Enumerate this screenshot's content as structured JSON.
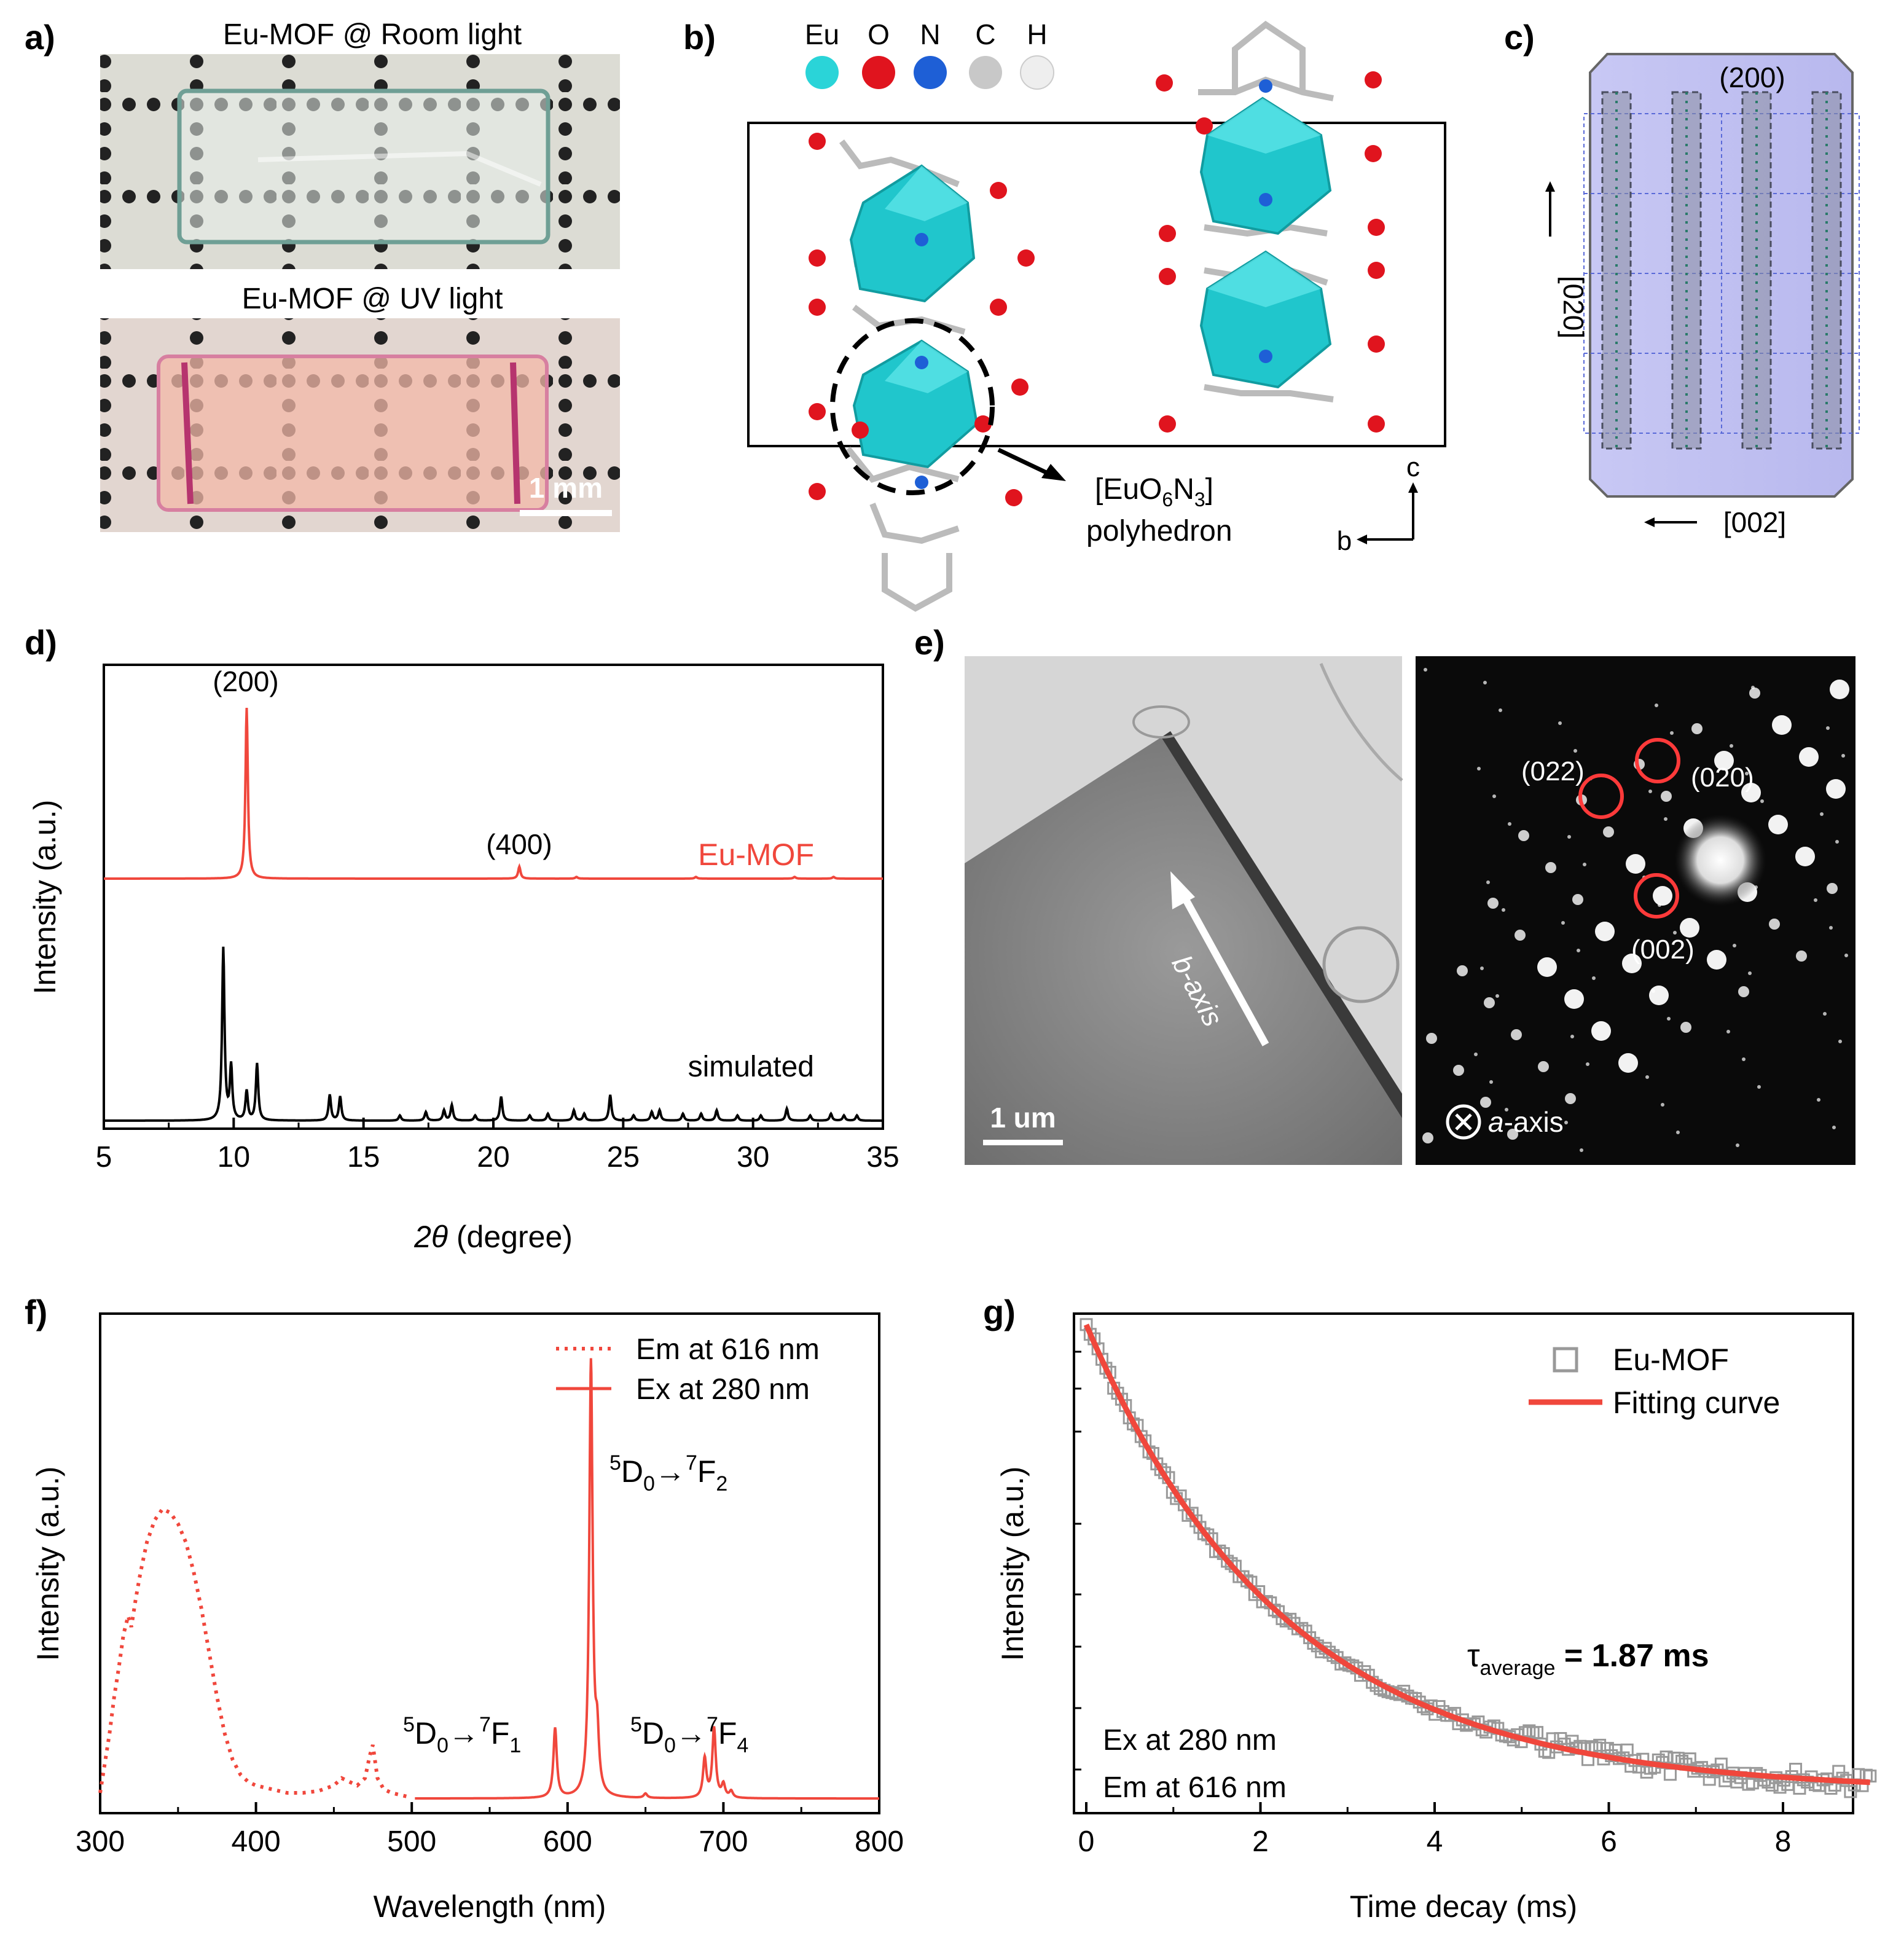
{
  "figure": {
    "panels": [
      "a)",
      "b)",
      "c)",
      "d)",
      "e)",
      "f)",
      "g)"
    ]
  },
  "panel_a": {
    "title_room": "Eu-MOF @ Room light",
    "title_uv": "Eu-MOF @ UV light",
    "scale_bar": "1 mm"
  },
  "panel_b": {
    "legend": [
      {
        "element": "Eu",
        "color": "#2ad4d8"
      },
      {
        "element": "O",
        "color": "#e0141e"
      },
      {
        "element": "N",
        "color": "#1e5fd6"
      },
      {
        "element": "C",
        "color": "#c8c8c8"
      },
      {
        "element": "H",
        "color": "#eeeeee"
      }
    ],
    "polyhedron_label_1": "[EuO",
    "polyhedron_sub_1": "6",
    "polyhedron_label_2": "N",
    "polyhedron_sub_2": "3",
    "polyhedron_label_3": "]",
    "polyhedron_word": "polyhedron",
    "axis_c": "c",
    "axis_b": "b"
  },
  "panel_c": {
    "face_label": "(200)",
    "dir_vertical": "[020]",
    "dir_horizontal": "[002]"
  },
  "panel_e": {
    "arrow_label": "b-axis",
    "scale_bar": "1 um",
    "spots": [
      "(022)",
      "(020)",
      "(002)"
    ],
    "zone_axis_prefix": "a",
    "zone_axis_suffix": "-axis"
  },
  "chart_data": [
    {
      "id": "d",
      "type": "line",
      "title": "",
      "xlabel_italic": "2θ",
      "xlabel_rest": " (degree)",
      "ylabel": "Intensity (a.u.)",
      "xlim": [
        5,
        35
      ],
      "xticks": [
        "5",
        "10",
        "15",
        "20",
        "25",
        "30",
        "35"
      ],
      "series": [
        {
          "name": "Eu-MOF",
          "color": "#f0473c",
          "peaks": [
            [
              10.5,
              1.0
            ],
            [
              21.0,
              0.07
            ],
            [
              23.2,
              0.01
            ],
            [
              27.8,
              0.01
            ],
            [
              31.6,
              0.01
            ],
            [
              33.1,
              0.01
            ]
          ]
        },
        {
          "name": "simulated",
          "color": "#000000",
          "peaks": [
            [
              9.6,
              1.0
            ],
            [
              9.9,
              0.31
            ],
            [
              10.5,
              0.17
            ],
            [
              10.9,
              0.33
            ],
            [
              13.7,
              0.15
            ],
            [
              14.1,
              0.14
            ],
            [
              16.4,
              0.03
            ],
            [
              17.4,
              0.05
            ],
            [
              18.1,
              0.06
            ],
            [
              18.4,
              0.09
            ],
            [
              19.3,
              0.03
            ],
            [
              20.3,
              0.14
            ],
            [
              21.4,
              0.03
            ],
            [
              22.1,
              0.04
            ],
            [
              23.1,
              0.06
            ],
            [
              23.5,
              0.04
            ],
            [
              24.5,
              0.15
            ],
            [
              25.4,
              0.03
            ],
            [
              26.1,
              0.05
            ],
            [
              26.4,
              0.06
            ],
            [
              27.3,
              0.04
            ],
            [
              28.0,
              0.04
            ],
            [
              28.6,
              0.06
            ],
            [
              29.4,
              0.03
            ],
            [
              30.3,
              0.03
            ],
            [
              31.3,
              0.07
            ],
            [
              32.2,
              0.03
            ],
            [
              33.0,
              0.04
            ],
            [
              33.5,
              0.03
            ],
            [
              34.0,
              0.03
            ]
          ]
        }
      ],
      "annotations": [
        "(200)",
        "(400)"
      ]
    },
    {
      "id": "f",
      "type": "line",
      "xlabel": "Wavelength (nm)",
      "ylabel": "Intensity (a.u.)",
      "xlim": [
        300,
        800
      ],
      "xticks": [
        "300",
        "400",
        "500",
        "600",
        "700",
        "800"
      ],
      "series": [
        {
          "name": "Em at 616 nm",
          "style": "dotted",
          "color": "#f0473c",
          "x": [
            300,
            303,
            306,
            309,
            312,
            315,
            318,
            320,
            323,
            326,
            330,
            335,
            340,
            345,
            350,
            355,
            360,
            365,
            370,
            375,
            380,
            385,
            390,
            395,
            400,
            410,
            420,
            430,
            440,
            450,
            455,
            460,
            465,
            470,
            473,
            475,
            478,
            482,
            487,
            492,
            497
          ],
          "y": [
            0.02,
            0.1,
            0.18,
            0.28,
            0.36,
            0.45,
            0.5,
            0.47,
            0.55,
            0.62,
            0.7,
            0.76,
            0.79,
            0.78,
            0.75,
            0.7,
            0.62,
            0.52,
            0.4,
            0.28,
            0.18,
            0.11,
            0.07,
            0.05,
            0.04,
            0.03,
            0.02,
            0.02,
            0.025,
            0.04,
            0.06,
            0.05,
            0.04,
            0.06,
            0.12,
            0.15,
            0.06,
            0.03,
            0.02,
            0.015,
            0.01
          ]
        },
        {
          "name": "Ex at 280 nm",
          "style": "solid",
          "color": "#f0473c",
          "peaks": [
            [
              592,
              0.16
            ],
            [
              615,
              1.0
            ],
            [
              619,
              0.12
            ],
            [
              650,
              0.01
            ],
            [
              688,
              0.09
            ],
            [
              694,
              0.16
            ],
            [
              700,
              0.03
            ],
            [
              705,
              0.015
            ]
          ]
        }
      ],
      "annotations": [
        "5D0→7F2",
        "5D0→7F1",
        "5D0→7F4"
      ]
    },
    {
      "id": "g",
      "type": "scatter",
      "xlabel": "Time decay (ms)",
      "ylabel": "Intensity (a.u.)",
      "xlim": [
        0,
        9
      ],
      "xticks": [
        "0",
        "2",
        "4",
        "6",
        "8"
      ],
      "series": [
        {
          "name": "Eu-MOF",
          "marker": "open-square",
          "color": "#999999"
        },
        {
          "name": "Fitting curve",
          "color": "#f0473c"
        }
      ],
      "fit": {
        "amplitude": 1.0,
        "tau": 2.3,
        "offset": 0.04
      },
      "tau_label": "τ",
      "tau_sub": "average",
      "tau_value": " = 1.87 ms",
      "conditions": [
        "Ex at 280 nm",
        "Em at 616 nm"
      ]
    }
  ]
}
